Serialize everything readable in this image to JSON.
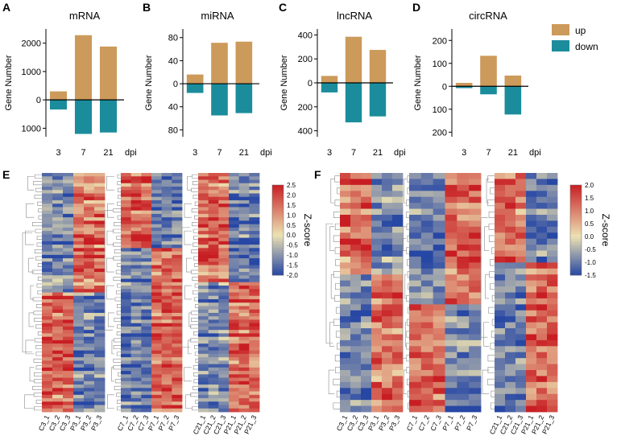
{
  "panels": {
    "A": "A",
    "B": "B",
    "C": "C",
    "D": "D",
    "E": "E",
    "F": "F"
  },
  "colors": {
    "up": "#CC9A5A",
    "down": "#1B8C9C",
    "heat_low": "#2747A4",
    "heat_mid": "#EDE2B2",
    "heat_high": "#C81E23",
    "dendrogram": "#8A8A8A"
  },
  "legend": {
    "up_label": "up",
    "down_label": "down"
  },
  "chart_data": [
    {
      "type": "bar",
      "panel": "A",
      "title": "mRNA",
      "categories": [
        "3",
        "7",
        "21"
      ],
      "series": [
        {
          "name": "up",
          "values": [
            300,
            2280,
            1880
          ]
        },
        {
          "name": "down",
          "values": [
            -340,
            -1200,
            -1150
          ]
        }
      ],
      "ylabel": "Gene Number",
      "xlabel": "dpi",
      "ylim": [
        -1300,
        2500
      ],
      "yticks": [
        2000,
        1000,
        0,
        -1000
      ],
      "yticklabels": [
        "2000",
        "1000",
        "0",
        "1000"
      ]
    },
    {
      "type": "bar",
      "panel": "B",
      "title": "miRNA",
      "categories": [
        "3",
        "7",
        "21"
      ],
      "series": [
        {
          "name": "up",
          "values": [
            16,
            71,
            73
          ]
        },
        {
          "name": "down",
          "values": [
            -16,
            -55,
            -51
          ]
        }
      ],
      "ylabel": "Gene Number",
      "xlabel": "dpi",
      "ylim": [
        -92,
        95
      ],
      "yticks": [
        80,
        40,
        0,
        -40,
        -80
      ],
      "yticklabels": [
        "80",
        "40",
        "0",
        "40",
        "80"
      ]
    },
    {
      "type": "bar",
      "panel": "C",
      "title": "lncRNA",
      "categories": [
        "3",
        "7",
        "21"
      ],
      "series": [
        {
          "name": "up",
          "values": [
            58,
            385,
            275
          ]
        },
        {
          "name": "down",
          "values": [
            -80,
            -330,
            -280
          ]
        }
      ],
      "ylabel": "Gene Number",
      "xlabel": "dpi",
      "ylim": [
        -450,
        450
      ],
      "yticks": [
        400,
        200,
        0,
        -200,
        -400
      ],
      "yticklabels": [
        "400",
        "200",
        "0",
        "200",
        "400"
      ]
    },
    {
      "type": "bar",
      "panel": "D",
      "title": "circRNA",
      "categories": [
        "3",
        "7",
        "21"
      ],
      "series": [
        {
          "name": "up",
          "values": [
            15,
            133,
            47
          ]
        },
        {
          "name": "down",
          "values": [
            -8,
            -35,
            -123
          ]
        }
      ],
      "ylabel": "Gene Number",
      "xlabel": "dpi",
      "ylim": [
        -220,
        250
      ],
      "yticks": [
        200,
        100,
        0,
        -100,
        -200
      ],
      "yticklabels": [
        "200",
        "100",
        "0",
        "100",
        "200"
      ]
    },
    {
      "type": "heatmap",
      "panel": "E",
      "blocks": [
        {
          "samples": [
            "C3_1",
            "C3_2",
            "C3_3",
            "P3_1",
            "P3_2",
            "P3_3"
          ],
          "rows": 70,
          "upper_fraction": 0.5,
          "upper_pattern": "low-high",
          "lower_pattern": "high-low"
        },
        {
          "samples": [
            "C7_1",
            "C7_2",
            "C7_3",
            "P7_1",
            "P7_2",
            "P7_3"
          ],
          "rows": 70,
          "upper_fraction": 0.32,
          "upper_pattern": "high-low",
          "lower_pattern": "low-high"
        },
        {
          "samples": [
            "C21_1",
            "C21_2",
            "C21_3",
            "P21_1",
            "P21_2",
            "P21_3"
          ],
          "rows": 70,
          "upper_fraction": 0.46,
          "upper_pattern": "high-low",
          "lower_pattern": "low-high"
        }
      ],
      "colorbar": {
        "label": "Z-score",
        "max": 2.5,
        "min": -2.0,
        "ticks": [
          "2.5",
          "2.0",
          "1.5",
          "1.0",
          "0.5",
          "0.0",
          "-0.5",
          "-1.0",
          "-1.5",
          "-2.0"
        ]
      }
    },
    {
      "type": "heatmap",
      "panel": "F",
      "blocks": [
        {
          "samples": [
            "C3_1",
            "C3_2",
            "C3_3",
            "P3_1",
            "P3_2",
            "P3_3"
          ],
          "rows": 40,
          "upper_fraction": 0.42,
          "upper_pattern": "high-low",
          "lower_pattern": "low-high"
        },
        {
          "samples": [
            "C7_1",
            "C7_2",
            "C7_3",
            "P7_1",
            "P7_2",
            "P7_3"
          ],
          "rows": 40,
          "upper_fraction": 0.55,
          "upper_pattern": "low-high",
          "lower_pattern": "high-low"
        },
        {
          "samples": [
            "C21_1",
            "C21_2",
            "C21_3",
            "P21_1",
            "P21_2",
            "P21_3"
          ],
          "rows": 40,
          "upper_fraction": 0.38,
          "upper_pattern": "high-low",
          "lower_pattern": "low-high"
        }
      ],
      "colorbar": {
        "label": "Z-score",
        "max": 2.0,
        "min": -1.5,
        "ticks": [
          "2.0",
          "1.5",
          "1.0",
          "0.5",
          "0.0",
          "-0.5",
          "-1.0",
          "-1.5"
        ]
      }
    }
  ]
}
